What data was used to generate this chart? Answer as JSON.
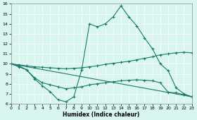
{
  "xlabel": "Humidex (Indice chaleur)",
  "xlim": [
    0,
    23
  ],
  "ylim": [
    6,
    16
  ],
  "yticks": [
    6,
    7,
    8,
    9,
    10,
    11,
    12,
    13,
    14,
    15,
    16
  ],
  "xticks": [
    0,
    1,
    2,
    3,
    4,
    5,
    6,
    7,
    8,
    9,
    10,
    11,
    12,
    13,
    14,
    15,
    16,
    17,
    18,
    19,
    20,
    21,
    22,
    23
  ],
  "line_color": "#1a7a6a",
  "bg_color": "#d8f5f0",
  "grid_color": "#ffffff",
  "line1_x": [
    0,
    1,
    2,
    3,
    4,
    5,
    6,
    7,
    8,
    9,
    10,
    11,
    12,
    13,
    14,
    15,
    16,
    17,
    18,
    19,
    20,
    21,
    22,
    23
  ],
  "line1_y": [
    10.0,
    9.7,
    9.4,
    8.5,
    7.8,
    7.2,
    6.4,
    6.2,
    6.7,
    9.4,
    14.0,
    13.7,
    14.0,
    14.7,
    15.8,
    14.7,
    13.8,
    12.6,
    11.5,
    10.0,
    9.3,
    7.6,
    7.0,
    6.7
  ],
  "line2_x": [
    0,
    1,
    2,
    3,
    4,
    5,
    6,
    7,
    8,
    9,
    10,
    11,
    12,
    13,
    14,
    15,
    16,
    17,
    18,
    19,
    20,
    21,
    22,
    23
  ],
  "line2_y": [
    10.0,
    9.9,
    9.8,
    9.7,
    9.65,
    9.6,
    9.55,
    9.5,
    9.55,
    9.6,
    9.7,
    9.8,
    9.95,
    10.05,
    10.15,
    10.25,
    10.4,
    10.55,
    10.7,
    10.9,
    11.0,
    11.1,
    11.15,
    11.1
  ],
  "line3_x": [
    0,
    1,
    2,
    3,
    4,
    5,
    6,
    7,
    8,
    9,
    10,
    11,
    12,
    13,
    14,
    15,
    16,
    17,
    18,
    19,
    20,
    21,
    22,
    23
  ],
  "line3_y": [
    10.0,
    9.8,
    9.4,
    8.6,
    8.1,
    7.9,
    7.7,
    7.5,
    7.6,
    7.7,
    7.9,
    8.0,
    8.1,
    8.2,
    8.3,
    8.35,
    8.4,
    8.35,
    8.3,
    8.1,
    7.15,
    7.1,
    6.9,
    6.7
  ],
  "line4_x": [
    0,
    23
  ],
  "line4_y": [
    10.0,
    6.7
  ]
}
